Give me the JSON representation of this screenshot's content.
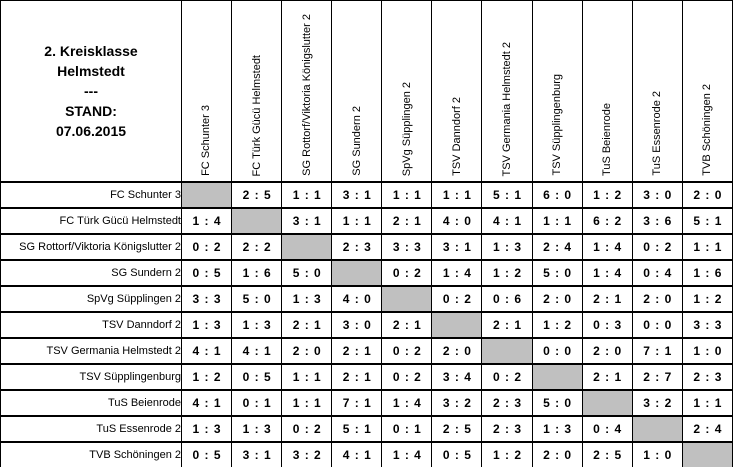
{
  "header": {
    "league_line1": "2. Kreisklasse",
    "league_line2": "Helmstedt",
    "separator": "---",
    "stand_label": "STAND:",
    "stand_date": "07.06.2015"
  },
  "colors": {
    "diagonal_fill": "#C0C0C0",
    "border": "#000000",
    "background": "#FFFFFF",
    "text": "#000000"
  },
  "chart_data": {
    "type": "table",
    "title": "2. Kreisklasse Helmstedt - STAND: 07.06.2015",
    "description": "Results cross-table: row team is home side, column team is away side, diagonal cells are blank (gray).",
    "teams": [
      "FC Schunter 3",
      "FC Türk Gücü Helmstedt",
      "SG Rottorf/Viktoria Königslutter 2",
      "SG Sundern 2",
      "SpVg Süpplingen 2",
      "TSV Danndorf 2",
      "TSV Germania Helmstedt 2",
      "TSV Süpplingenburg",
      "TuS Beienrode",
      "TuS Essenrode 2",
      "TVB Schöningen 2"
    ],
    "matrix": [
      [
        null,
        "2 : 5",
        "1 : 1",
        "3 : 1",
        "1 : 1",
        "1 : 1",
        "5 : 1",
        "6 : 0",
        "1 : 2",
        "3 : 0",
        "2 : 0"
      ],
      [
        "1 : 4",
        null,
        "3 : 1",
        "1 : 1",
        "2 : 1",
        "4 : 0",
        "4 : 1",
        "1 : 1",
        "6 : 2",
        "3 : 6",
        "5 : 1"
      ],
      [
        "0 : 2",
        "2 : 2",
        null,
        "2 : 3",
        "3 : 3",
        "3 : 1",
        "1 : 3",
        "2 : 4",
        "1 : 4",
        "0 : 2",
        "1 : 1"
      ],
      [
        "0 : 5",
        "1 : 6",
        "5 : 0",
        null,
        "0 : 2",
        "1 : 4",
        "1 : 2",
        "5 : 0",
        "1 : 4",
        "0 : 4",
        "1 : 6"
      ],
      [
        "3 : 3",
        "5 : 0",
        "1 : 3",
        "4 : 0",
        null,
        "0 : 2",
        "0 : 6",
        "2 : 0",
        "2 : 1",
        "2 : 0",
        "1 : 2"
      ],
      [
        "1 : 3",
        "1 : 3",
        "2 : 1",
        "3 : 0",
        "2 : 1",
        null,
        "2 : 1",
        "1 : 2",
        "0 : 3",
        "0 : 0",
        "3 : 3"
      ],
      [
        "4 : 1",
        "4 : 1",
        "2 : 0",
        "2 : 1",
        "0 : 2",
        "2 : 0",
        null,
        "0 : 0",
        "2 : 0",
        "7 : 1",
        "1 : 0"
      ],
      [
        "1 : 2",
        "0 : 5",
        "1 : 1",
        "2 : 1",
        "0 : 2",
        "3 : 4",
        "0 : 2",
        null,
        "2 : 1",
        "2 : 7",
        "2 : 3"
      ],
      [
        "4 : 1",
        "0 : 1",
        "1 : 1",
        "7 : 1",
        "1 : 4",
        "3 : 2",
        "2 : 3",
        "5 : 0",
        null,
        "3 : 2",
        "1 : 1"
      ],
      [
        "1 : 3",
        "1 : 3",
        "0 : 2",
        "5 : 1",
        "0 : 1",
        "2 : 5",
        "2 : 3",
        "1 : 3",
        "0 : 4",
        null,
        "2 : 4"
      ],
      [
        "0 : 5",
        "3 : 1",
        "3 : 2",
        "4 : 1",
        "1 : 4",
        "0 : 5",
        "1 : 2",
        "2 : 0",
        "2 : 5",
        "1 : 0",
        null
      ]
    ]
  }
}
